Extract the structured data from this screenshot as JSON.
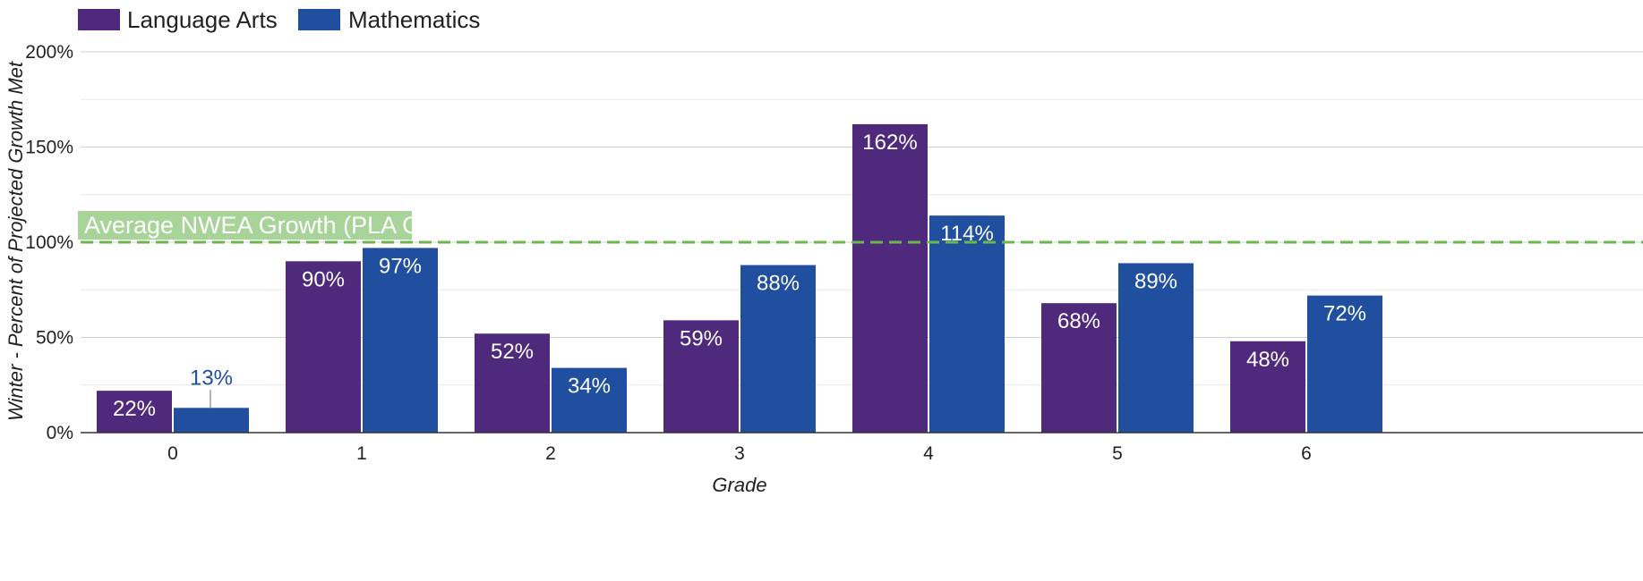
{
  "chart_data": {
    "type": "bar",
    "categories": [
      "0",
      "1",
      "2",
      "3",
      "4",
      "5",
      "6"
    ],
    "series": [
      {
        "name": "Language Arts",
        "values": [
          22,
          90,
          52,
          59,
          162,
          68,
          48
        ],
        "labels": [
          "22%",
          "90%",
          "52%",
          "59%",
          "162%",
          "68%",
          "48%"
        ],
        "color": "#4f2a7c"
      },
      {
        "name": "Mathematics",
        "values": [
          13,
          97,
          34,
          88,
          114,
          89,
          72
        ],
        "labels": [
          "13%",
          "97%",
          "34%",
          "88%",
          "114%",
          "89%",
          "72%"
        ],
        "color": "#1f4f9e"
      }
    ],
    "title": "",
    "xlabel": "Grade",
    "ylabel": "Winter - Percent of Projected Growth Met",
    "ylim": [
      0,
      200
    ],
    "yticks": [
      0,
      50,
      100,
      150,
      200
    ],
    "ytick_labels": [
      "0%",
      "50%",
      "100%",
      "150%",
      "200%"
    ],
    "grid": true,
    "legend_position": "top-left",
    "reference_line": {
      "value": 100,
      "label": "Average NWEA Growth (PLA Goal)",
      "color": "#6ab84a",
      "style": "dashed"
    }
  }
}
